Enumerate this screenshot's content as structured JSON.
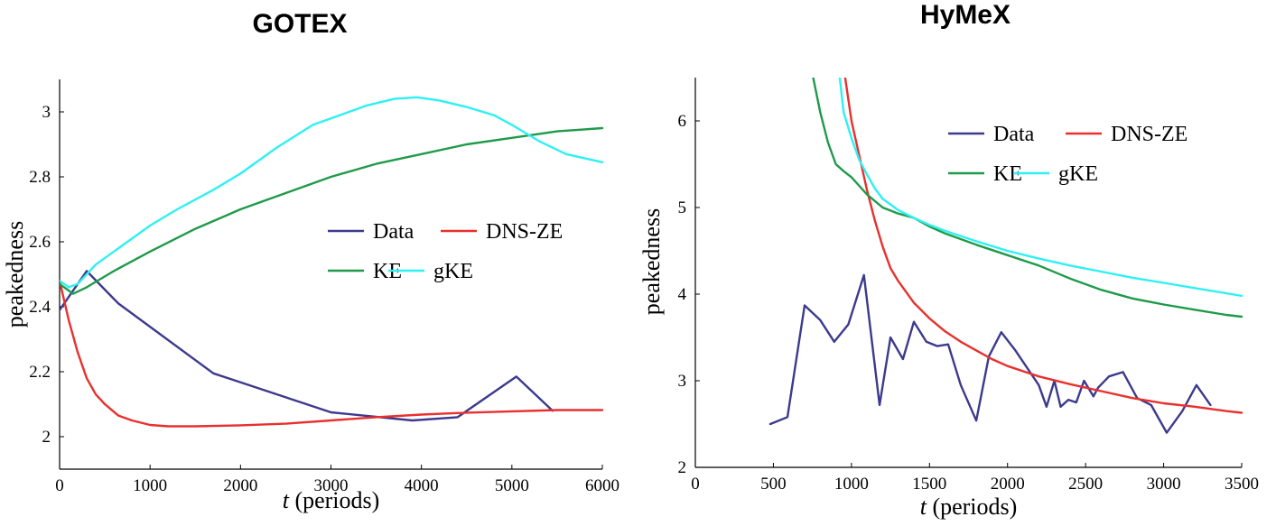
{
  "chart_data": [
    {
      "type": "line",
      "title": "GOTEX",
      "xlabel_italic": "t",
      "xlabel_rest": " (periods)",
      "ylabel": "peakedness",
      "xlim": [
        0,
        6000
      ],
      "ylim": [
        1.9,
        3.1
      ],
      "xticks": [
        0,
        1000,
        2000,
        3000,
        4000,
        5000,
        6000
      ],
      "xtick_labels": [
        "0",
        "1000",
        "2000",
        "3000",
        "4000",
        "5000",
        "6000"
      ],
      "yticks": [
        2,
        2.2,
        2.4,
        2.6,
        2.8,
        3
      ],
      "ytick_labels": [
        "2",
        "2.2",
        "2.4",
        "2.6",
        "2.8",
        "3"
      ],
      "grid": false,
      "legend_placement": "center-right",
      "series": [
        {
          "name": "Data",
          "color": "#3b3a8c",
          "x": [
            0,
            300,
            650,
            1700,
            3000,
            3900,
            4400,
            5050,
            5450
          ],
          "y": [
            2.39,
            2.51,
            2.41,
            2.195,
            2.075,
            2.05,
            2.06,
            2.185,
            2.08
          ]
        },
        {
          "name": "DNS-ZE",
          "color": "#e8302e",
          "x": [
            0,
            100,
            200,
            300,
            400,
            500,
            650,
            800,
            1000,
            1200,
            1500,
            2000,
            2500,
            3000,
            3500,
            4000,
            4500,
            5000,
            5500,
            6000
          ],
          "y": [
            2.48,
            2.36,
            2.26,
            2.18,
            2.13,
            2.1,
            2.065,
            2.05,
            2.036,
            2.032,
            2.032,
            2.035,
            2.04,
            2.05,
            2.06,
            2.068,
            2.074,
            2.078,
            2.082,
            2.082
          ]
        },
        {
          "name": "KE",
          "color": "#1f9a4a",
          "x": [
            0,
            150,
            300,
            600,
            1000,
            1500,
            2000,
            2500,
            3000,
            3500,
            4000,
            4500,
            5000,
            5500,
            6000
          ],
          "y": [
            2.47,
            2.44,
            2.46,
            2.51,
            2.57,
            2.64,
            2.7,
            2.75,
            2.8,
            2.84,
            2.87,
            2.9,
            2.92,
            2.94,
            2.95
          ]
        },
        {
          "name": "gKE",
          "color": "#2ff0f2",
          "x": [
            0,
            100,
            200,
            400,
            700,
            1000,
            1300,
            1700,
            2000,
            2400,
            2800,
            3100,
            3400,
            3700,
            3950,
            4200,
            4500,
            4800,
            5000,
            5300,
            5600,
            6000
          ],
          "y": [
            2.48,
            2.46,
            2.47,
            2.53,
            2.59,
            2.65,
            2.7,
            2.76,
            2.81,
            2.89,
            2.96,
            2.99,
            3.02,
            3.04,
            3.045,
            3.035,
            3.015,
            2.99,
            2.96,
            2.91,
            2.87,
            2.845
          ]
        }
      ]
    },
    {
      "type": "line",
      "title": "HyMeX",
      "xlabel_italic": "t",
      "xlabel_rest": " (periods)",
      "ylabel": "peakedness",
      "xlim": [
        0,
        3500
      ],
      "ylim": [
        2,
        6.5
      ],
      "xticks": [
        0,
        500,
        1000,
        1500,
        2000,
        2500,
        3000,
        3500
      ],
      "xtick_labels": [
        "0",
        "500",
        "1000",
        "1500",
        "2000",
        "2500",
        "3000",
        "3500"
      ],
      "yticks": [
        2,
        3,
        4,
        5,
        6
      ],
      "ytick_labels": [
        "2",
        "3",
        "4",
        "5",
        "6"
      ],
      "grid": false,
      "legend_placement": "top-right",
      "series": [
        {
          "name": "Data",
          "color": "#3b3a8c",
          "x": [
            480,
            590,
            700,
            800,
            890,
            980,
            1080,
            1180,
            1250,
            1330,
            1400,
            1480,
            1550,
            1620,
            1700,
            1800,
            1880,
            1960,
            2050,
            2200,
            2250,
            2300,
            2340,
            2390,
            2440,
            2490,
            2550,
            2580,
            2650,
            2740,
            2830,
            2920,
            3020,
            3120,
            3210,
            3300
          ],
          "y": [
            2.5,
            2.58,
            3.87,
            3.7,
            3.45,
            3.65,
            4.22,
            2.72,
            3.5,
            3.25,
            3.68,
            3.45,
            3.4,
            3.42,
            2.95,
            2.54,
            3.28,
            3.56,
            3.35,
            2.95,
            2.7,
            3.0,
            2.7,
            2.78,
            2.75,
            3.0,
            2.82,
            2.92,
            3.05,
            3.1,
            2.8,
            2.72,
            2.4,
            2.65,
            2.95,
            2.72
          ]
        },
        {
          "name": "DNS-ZE",
          "color": "#e8302e",
          "x": [
            960,
            1000,
            1050,
            1100,
            1150,
            1200,
            1250,
            1300,
            1400,
            1500,
            1600,
            1700,
            1800,
            1900,
            2000,
            2200,
            2400,
            2600,
            2800,
            3000,
            3200,
            3400,
            3500
          ],
          "y": [
            6.5,
            6.0,
            5.6,
            5.2,
            4.85,
            4.55,
            4.3,
            4.15,
            3.9,
            3.72,
            3.57,
            3.45,
            3.35,
            3.25,
            3.17,
            3.05,
            2.96,
            2.88,
            2.8,
            2.74,
            2.7,
            2.65,
            2.63
          ]
        },
        {
          "name": "KE",
          "color": "#1f9a4a",
          "x": [
            755,
            800,
            850,
            900,
            950,
            1000,
            1050,
            1100,
            1200,
            1300,
            1400,
            1500,
            1600,
            1800,
            2000,
            2200,
            2400,
            2600,
            2800,
            3000,
            3200,
            3400,
            3500
          ],
          "y": [
            6.5,
            6.1,
            5.75,
            5.5,
            5.42,
            5.35,
            5.25,
            5.15,
            5.0,
            4.93,
            4.88,
            4.78,
            4.7,
            4.57,
            4.45,
            4.33,
            4.18,
            4.05,
            3.95,
            3.88,
            3.82,
            3.76,
            3.74
          ]
        },
        {
          "name": "gKE",
          "color": "#2ff0f2",
          "x": [
            925,
            950,
            1000,
            1050,
            1100,
            1150,
            1200,
            1300,
            1400,
            1500,
            1600,
            1800,
            2000,
            2200,
            2400,
            2600,
            2800,
            3000,
            3200,
            3400,
            3500
          ],
          "y": [
            6.5,
            6.1,
            5.8,
            5.55,
            5.38,
            5.22,
            5.1,
            4.97,
            4.88,
            4.8,
            4.73,
            4.61,
            4.5,
            4.41,
            4.33,
            4.26,
            4.19,
            4.13,
            4.07,
            4.01,
            3.98
          ]
        }
      ]
    }
  ]
}
